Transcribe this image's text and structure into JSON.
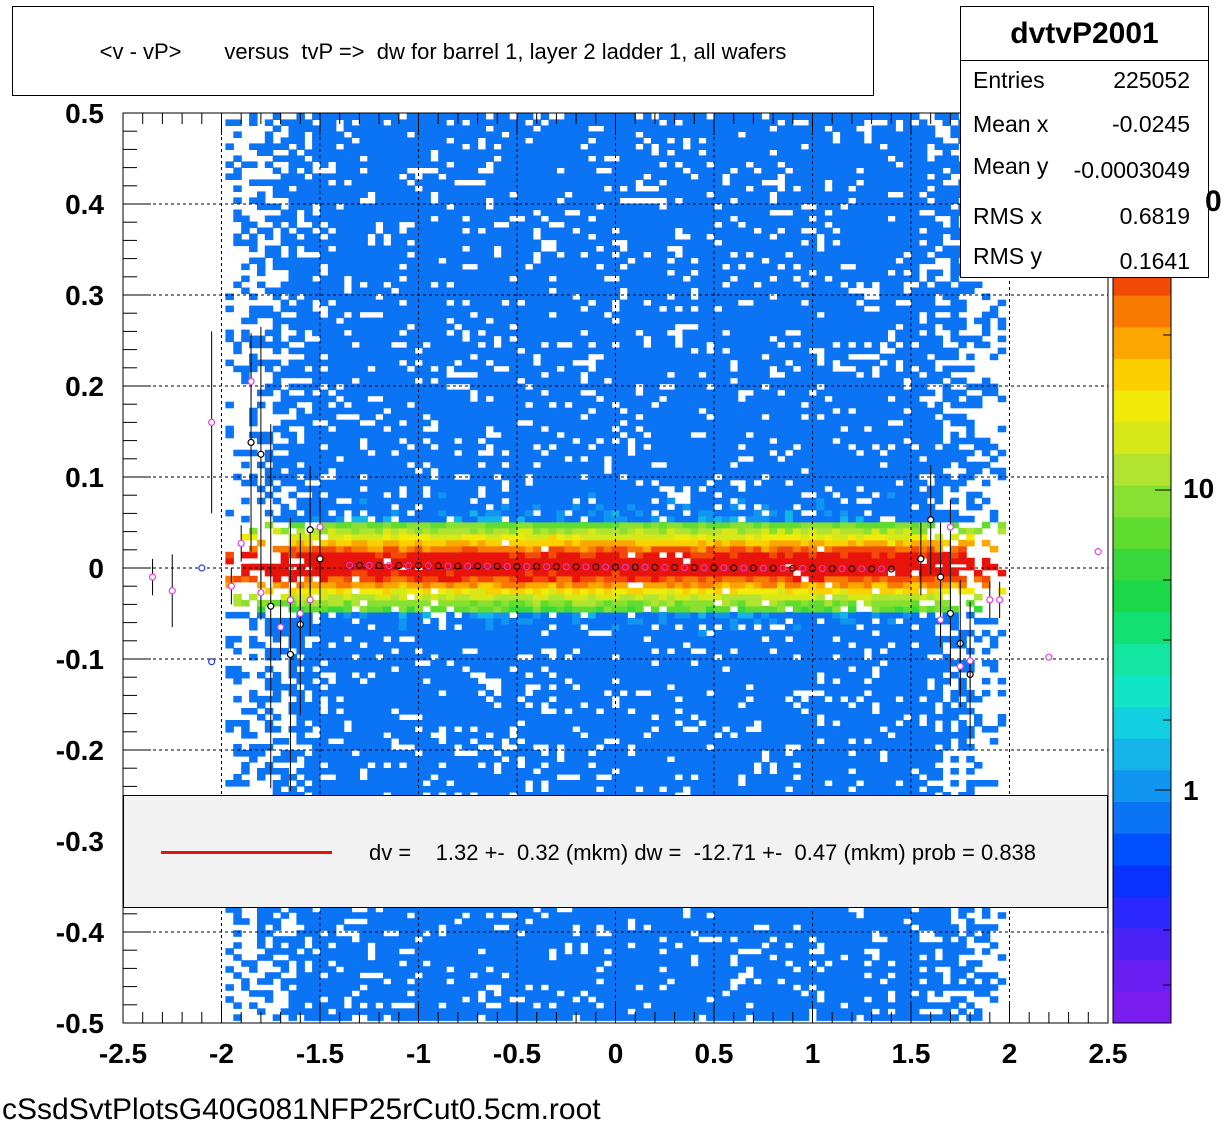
{
  "title": "<v - vP>       versus  tvP =>  dw for barrel 1, layer 2 ladder 1, all wafers",
  "stats": {
    "name": "dvtvP2001",
    "rows": [
      {
        "label": "Entries",
        "value": "225052"
      },
      {
        "label": "Mean x",
        "value": "-0.0245"
      },
      {
        "label": "Mean y",
        "value": "-0.0003049"
      },
      {
        "label": "RMS x",
        "value": "0.6819"
      },
      {
        "label": "RMS y",
        "value": "0.1641"
      }
    ]
  },
  "legend": {
    "text": "dv =    1.32 +-  0.32 (mkm) dw =  -12.71 +-  0.47 (mkm) prob = 0.838",
    "line_color": "#e8140c"
  },
  "footer": "cSsdSvtPlotsG40G081NFP25rCut0.5cm.root",
  "palette": {
    "labels": [
      "10",
      "1"
    ],
    "partial_label": "0"
  },
  "chart_data": {
    "type": "heatmap",
    "xlim": [
      -2.5,
      2.5
    ],
    "ylim": [
      -0.5,
      0.5
    ],
    "x_ticks": [
      "-2.5",
      "-2",
      "-1.5",
      "-1",
      "-0.5",
      "0",
      "0.5",
      "1",
      "1.5",
      "2",
      "2.5"
    ],
    "y_ticks": [
      "0.5",
      "0.4",
      "0.3",
      "0.2",
      "0.1",
      "0",
      "-0.1",
      "-0.2",
      "-0.3",
      "-0.4",
      "-0.5"
    ],
    "grid": true,
    "log_z": true,
    "density": {
      "x_core": [
        -1.45,
        1.5
      ],
      "y_sigma": 0.025,
      "core_color": "#e8140c"
    },
    "fit_line": {
      "x": [
        -1.85,
        1.8
      ],
      "y": [
        0.003,
        -0.001
      ],
      "color": "#e8140c"
    },
    "profile_black": [
      {
        "x": -1.85,
        "y": 0.138,
        "e": 0.12
      },
      {
        "x": -1.8,
        "y": 0.125,
        "e": 0.14
      },
      {
        "x": -1.75,
        "y": -0.042,
        "e": 0.2
      },
      {
        "x": -1.65,
        "y": -0.095,
        "e": 0.15
      },
      {
        "x": -1.6,
        "y": -0.062,
        "e": 0.1
      },
      {
        "x": -1.55,
        "y": 0.042,
        "e": 0.07
      },
      {
        "x": -1.5,
        "y": 0.01,
        "e": 0.05
      },
      {
        "x": 1.55,
        "y": 0.01,
        "e": 0.04
      },
      {
        "x": 1.6,
        "y": 0.053,
        "e": 0.06
      },
      {
        "x": 1.65,
        "y": -0.01,
        "e": 0.06
      },
      {
        "x": 1.7,
        "y": -0.05,
        "e": 0.08
      },
      {
        "x": 1.75,
        "y": -0.083,
        "e": 0.07
      },
      {
        "x": 1.8,
        "y": -0.117,
        "e": 0.08
      }
    ],
    "profile_magenta": [
      {
        "x": -2.35,
        "y": -0.01,
        "e": 0.02
      },
      {
        "x": -2.25,
        "y": -0.025,
        "e": 0.04
      },
      {
        "x": -2.05,
        "y": 0.16,
        "e": 0.1
      },
      {
        "x": -1.95,
        "y": -0.02,
        "e": 0.02
      },
      {
        "x": -1.9,
        "y": 0.027,
        "e": 0.02
      },
      {
        "x": -1.85,
        "y": 0.205,
        "e": 0.02
      },
      {
        "x": -1.8,
        "y": -0.027,
        "e": 0.03
      },
      {
        "x": -1.7,
        "y": -0.065,
        "e": 0.03
      },
      {
        "x": -1.65,
        "y": -0.035,
        "e": 0.03
      },
      {
        "x": -1.6,
        "y": -0.05,
        "e": 0.03
      },
      {
        "x": -1.55,
        "y": -0.035,
        "e": 0.04
      },
      {
        "x": -1.5,
        "y": 0.045,
        "e": 0.03
      },
      {
        "x": 1.65,
        "y": -0.057,
        "e": 0.03
      },
      {
        "x": 1.7,
        "y": 0.045,
        "e": 0.03
      },
      {
        "x": 1.75,
        "y": -0.108,
        "e": 0.03
      },
      {
        "x": 1.8,
        "y": -0.102,
        "e": 0.03
      },
      {
        "x": 1.9,
        "y": -0.035,
        "e": 0.02
      },
      {
        "x": 1.95,
        "y": -0.035,
        "e": 0.02
      },
      {
        "x": 2.2,
        "y": -0.098,
        "e": 0.0
      },
      {
        "x": 2.45,
        "y": 0.018,
        "e": 0.0
      }
    ],
    "profile_blue": [
      {
        "x": -2.1,
        "y": 0.0
      },
      {
        "x": -2.05,
        "y": -0.103
      }
    ]
  }
}
